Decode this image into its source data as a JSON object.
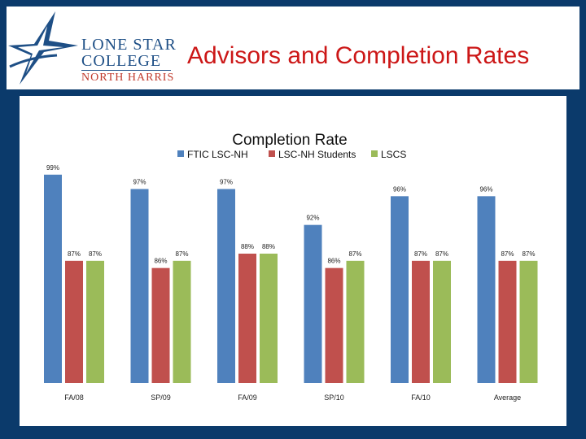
{
  "header": {
    "logo": {
      "line1": "LONE STAR",
      "line2": "COLLEGE",
      "line3": "NORTH HARRIS"
    },
    "title": "Advisors and Completion Rates"
  },
  "chart_data": {
    "type": "bar",
    "title": "Completion Rate",
    "categories": [
      "FA/08",
      "SP/09",
      "FA/09",
      "SP/10",
      "FA/10",
      "Average"
    ],
    "series": [
      {
        "name": "FTIC LSC-NH",
        "color": "#4f81bd",
        "values": [
          99,
          97,
          97,
          92,
          96,
          96
        ]
      },
      {
        "name": "LSC-NH Students",
        "color": "#c0504d",
        "values": [
          87,
          86,
          88,
          86,
          87,
          87
        ]
      },
      {
        "name": "LSCS",
        "color": "#9bbb59",
        "values": [
          87,
          87,
          88,
          87,
          87,
          87
        ]
      }
    ],
    "value_suffix": "%",
    "ylim": [
      70,
      100
    ],
    "grid": false,
    "legend": "top"
  }
}
